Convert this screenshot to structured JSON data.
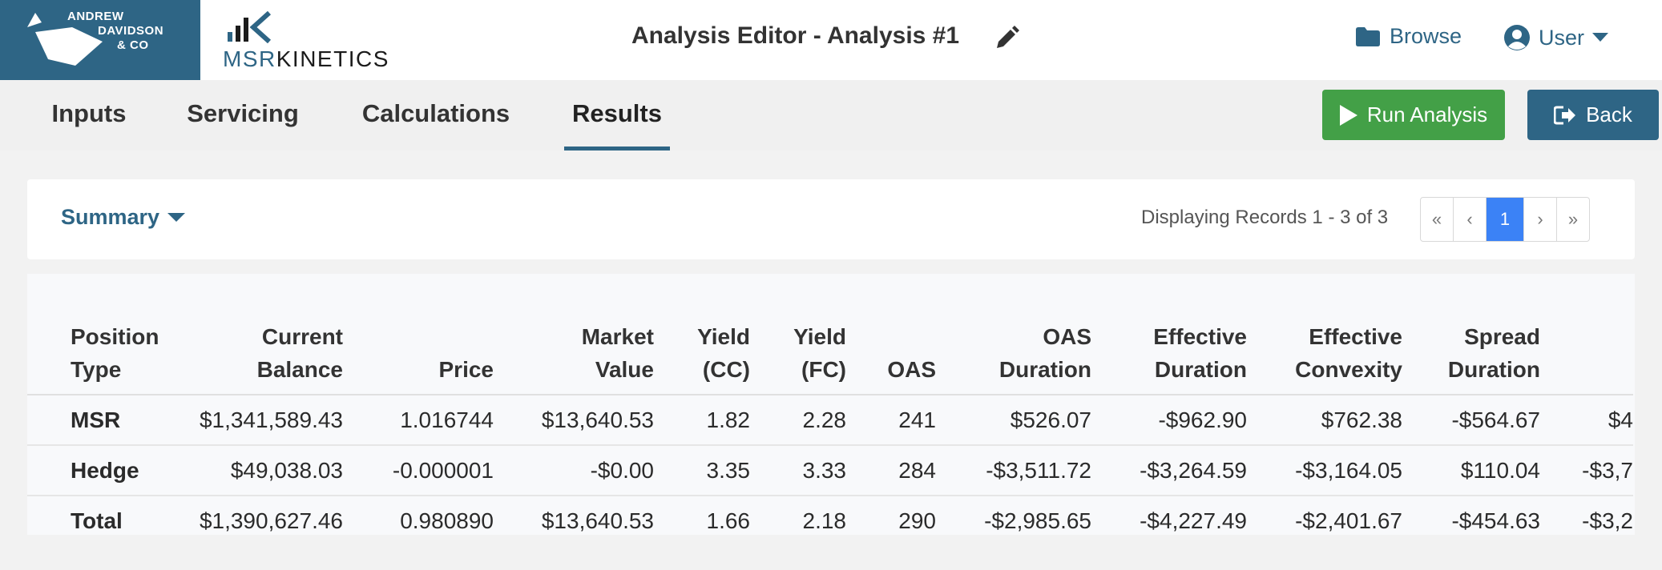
{
  "header": {
    "company_logo_lines": [
      "ANDREW",
      "DAVIDSON",
      "& CO"
    ],
    "product_logo": {
      "part1": "MSR",
      "part2": "KINETICS"
    },
    "title": "Analysis Editor - Analysis #1",
    "browse_label": "Browse",
    "user_label": "User",
    "colors": {
      "brand": "#2e6585",
      "run": "#43a047",
      "active_page": "#3b82f6"
    }
  },
  "tabs": [
    {
      "label": "Inputs"
    },
    {
      "label": "Servicing"
    },
    {
      "label": "Calculations"
    },
    {
      "label": "Results",
      "active": true
    }
  ],
  "actions": {
    "run_label": "Run Analysis",
    "back_label": "Back"
  },
  "summary": {
    "dropdown_label": "Summary",
    "records_text": "Displaying Records 1 - 3 of 3",
    "pager": {
      "first": "«",
      "prev": "‹",
      "current": "1",
      "next": "›",
      "last": "»"
    }
  },
  "table": {
    "headers": [
      [
        "Position",
        "Type"
      ],
      [
        "Current",
        "Balance"
      ],
      [
        "",
        "Price"
      ],
      [
        "Market",
        "Value"
      ],
      [
        "Yield",
        "(CC)"
      ],
      [
        "Yield",
        "(FC)"
      ],
      [
        "",
        "OAS"
      ],
      [
        "OAS",
        "Duration"
      ],
      [
        "Effective",
        "Duration"
      ],
      [
        "Effective",
        "Convexity"
      ],
      [
        "Spread",
        "Duration"
      ],
      [
        "",
        ""
      ]
    ],
    "rows": [
      [
        "MSR",
        "$1,341,589.43",
        "1.016744",
        "$13,640.53",
        "1.82",
        "2.28",
        "241",
        "$526.07",
        "-$962.90",
        "$762.38",
        "-$564.67",
        "$4"
      ],
      [
        "Hedge",
        "$49,038.03",
        "-0.000001",
        "-$0.00",
        "3.35",
        "3.33",
        "284",
        "-$3,511.72",
        "-$3,264.59",
        "-$3,164.05",
        "$110.04",
        "-$3,7"
      ],
      [
        "Total",
        "$1,390,627.46",
        "0.980890",
        "$13,640.53",
        "1.66",
        "2.18",
        "290",
        "-$2,985.65",
        "-$4,227.49",
        "-$2,401.67",
        "-$454.63",
        "-$3,2"
      ]
    ]
  }
}
